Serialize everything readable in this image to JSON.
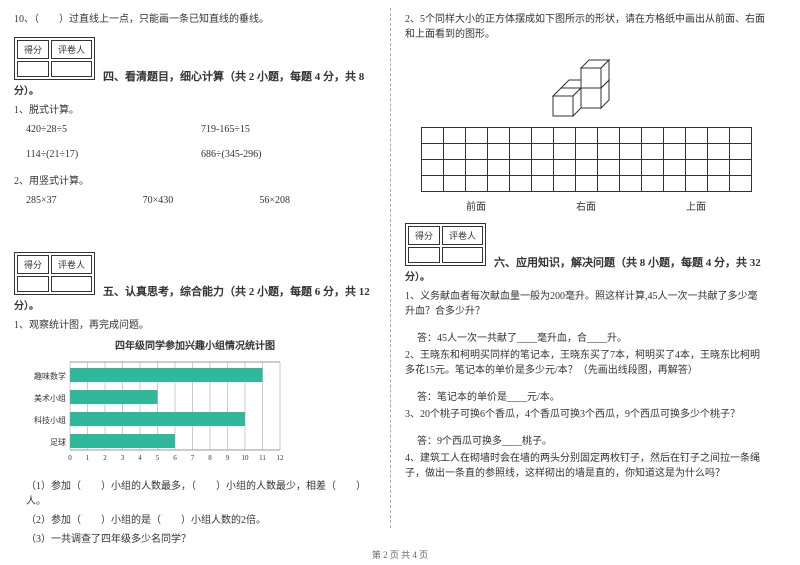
{
  "left": {
    "q10": "10、（　　）过直线上一点，只能画一条已知直线的垂线。",
    "scorebox": {
      "h1": "得分",
      "h2": "评卷人"
    },
    "section4": "四、看清题目，细心计算（共 2 小题，每题 4 分，共 8",
    "section4_tail": "分）。",
    "q4_1": "1、脱式计算。",
    "calc1a": "420÷28÷5",
    "calc1b": "719-165÷15",
    "calc2a": "114÷(21÷17)",
    "calc2b": "686÷(345-296)",
    "q4_2": "2、用竖式计算。",
    "calc3a": "285×37",
    "calc3b": "70×430",
    "calc3c": "56×208",
    "section5": "五、认真思考，综合能力（共 2 小题，每题 6 分，共 12",
    "section5_tail": "分）。",
    "q5_1": "1、观察统计图，再完成问题。",
    "chart_title": "四年级同学参加兴趣小组情况统计图",
    "chart": {
      "categories": [
        "趣味数学",
        "美术小组",
        "科技小组",
        "足球"
      ],
      "values": [
        11,
        5,
        10,
        6
      ],
      "xmax": 12,
      "bar_color": "#2fb89a",
      "grid_color": "#999",
      "label_color": "#333",
      "bg": "#ffffff"
    },
    "q5_1_1": "（1）参加（　　）小组的人数最多，（　　）小组的人数最少，相差（　　）人。",
    "q5_1_2": "（2）参加（　　）小组的是（　　）小组人数的2倍。",
    "q5_1_3": "（3）一共调查了四年级多少名同学？"
  },
  "right": {
    "q2_intro": "2、5个同样大小的正方体摆成如下图所示的形状，请在方格纸中画出从前面、右面和上面看到的图形。",
    "grid_labels": {
      "a": "前面",
      "b": "右面",
      "c": "上面"
    },
    "scorebox": {
      "h1": "得分",
      "h2": "评卷人"
    },
    "section6": "六、应用知识，解决问题（共 8 小题，每题 4 分，共 32",
    "section6_tail": "分）。",
    "q6_1": "1、义务献血者每次献血量一般为200毫升。照这样计算,45人一次一共献了多少毫升血？合多少升？",
    "a6_1": "答：45人一次一共献了____毫升血，合____升。",
    "q6_2": "2、王晓东和柯明买同样的笔记本，王晓东买了7本，柯明买了4本，王晓东比柯明多花15元。笔记本的单价是多少元/本？（先画出线段图，再解答）",
    "a6_2": "答：笔记本的单价是____元/本。",
    "q6_3": "3、20个桃子可换6个香瓜，4个香瓜可换3个西瓜，9个西瓜可换多少个桃子？",
    "a6_3": "答：9个西瓜可换多____桃子。",
    "q6_4": "4、建筑工人在砌墙时会在墙的两头分别固定两枚钉子，然后在钉子之间拉一条绳子，做出一条直的参照线，这样砌出的墙是直的，你知道这是为什么吗？"
  },
  "footer": "第 2 页 共 4 页"
}
